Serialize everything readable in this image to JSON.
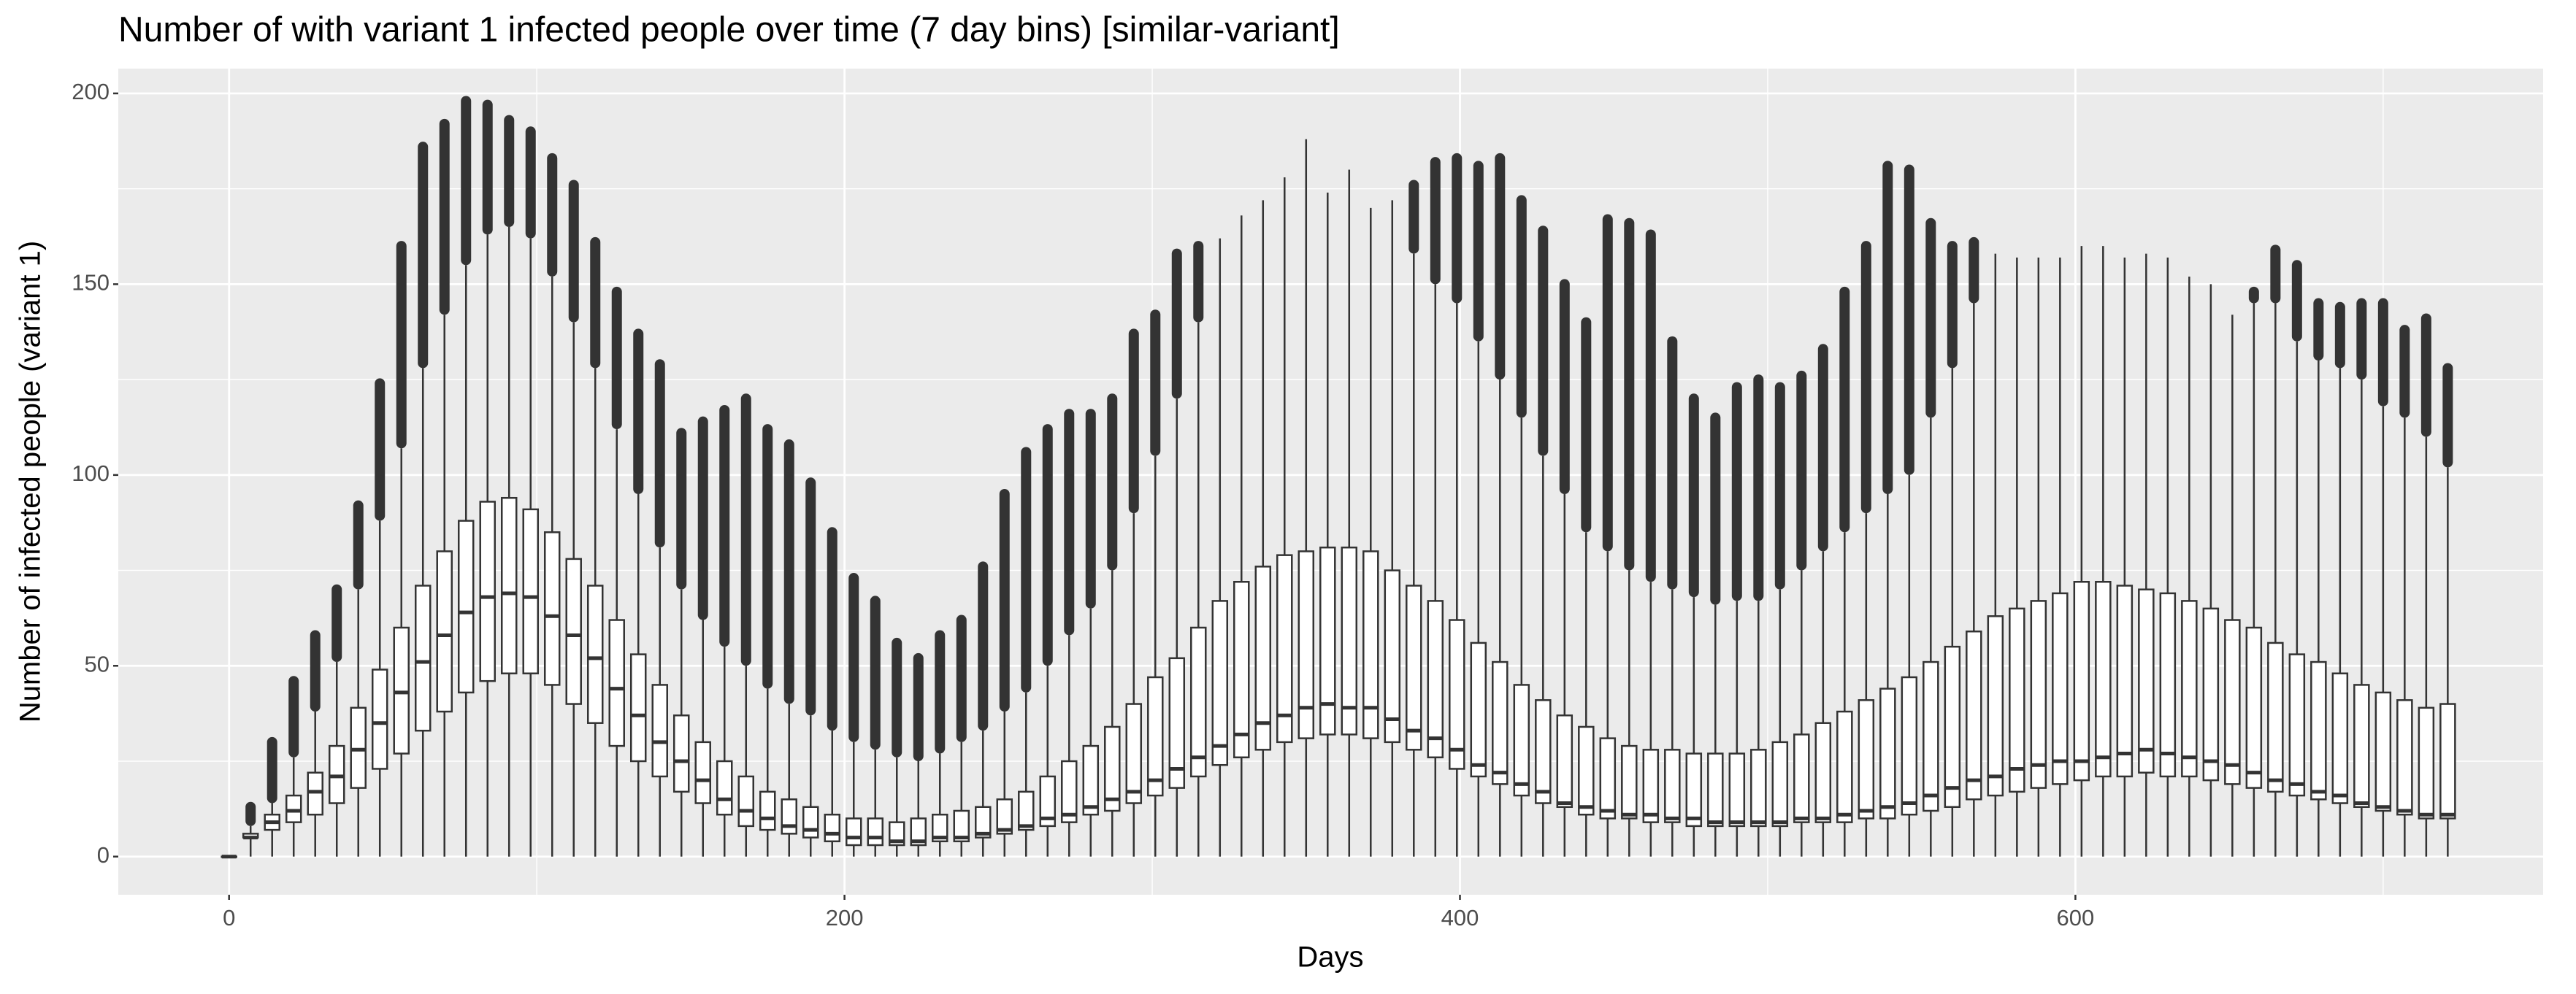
{
  "chart_data": {
    "type": "boxplot",
    "title": "Number of with variant 1 infected people over time (7 day bins) [similar-variant]",
    "x_label": "Days",
    "y_label": "Number of infected people (variant 1)",
    "xlim": [
      -36,
      752
    ],
    "ylim": [
      -10,
      206.5
    ],
    "xticks": [
      0,
      200,
      400,
      600
    ],
    "yticks": [
      0,
      50,
      100,
      150,
      200
    ],
    "x_minor_grid": [
      100,
      300,
      500,
      700
    ],
    "y_minor_grid": [
      25,
      75,
      125,
      175
    ],
    "grid": true,
    "color": "#333333",
    "x": [
      0,
      7,
      14,
      21,
      28,
      35,
      42,
      49,
      56,
      63,
      70,
      77,
      84,
      91,
      98,
      105,
      112,
      119,
      126,
      133,
      140,
      147,
      154,
      161,
      168,
      175,
      182,
      189,
      196,
      203,
      210,
      217,
      224,
      231,
      238,
      245,
      252,
      259,
      266,
      273,
      280,
      287,
      294,
      301,
      308,
      315,
      322,
      329,
      336,
      343,
      350,
      357,
      364,
      371,
      378,
      385,
      392,
      399,
      406,
      413,
      420,
      427,
      434,
      441,
      448,
      455,
      462,
      469,
      476,
      483,
      490,
      497,
      504,
      511,
      518,
      525,
      532,
      539,
      546,
      553,
      560,
      567,
      574,
      581,
      588,
      595,
      602,
      609,
      616,
      623,
      630,
      637,
      644,
      651,
      658,
      665,
      672,
      679,
      686,
      693,
      700,
      707,
      714,
      721
    ],
    "whisker_low": [
      0,
      0,
      0,
      0,
      0,
      0,
      0,
      0,
      0,
      0,
      0,
      0,
      0,
      0,
      0,
      0,
      0,
      0,
      0,
      0,
      0,
      0,
      0,
      0,
      0,
      0,
      0,
      0,
      0,
      0,
      0,
      0,
      0,
      0,
      0,
      0,
      0,
      0,
      0,
      0,
      0,
      0,
      0,
      0,
      0,
      0,
      0,
      0,
      0,
      0,
      0,
      0,
      0,
      0,
      0,
      0,
      0,
      0,
      0,
      0,
      0,
      0,
      0,
      0,
      0,
      0,
      0,
      0,
      0,
      0,
      0,
      0,
      0,
      0,
      0,
      0,
      0,
      0,
      0,
      0,
      0,
      0,
      0,
      0,
      0,
      0,
      0,
      0,
      0,
      0,
      0,
      0,
      0,
      0,
      0,
      0,
      0,
      0,
      0,
      0,
      0,
      0,
      0,
      0
    ],
    "q1": [
      0,
      5,
      7,
      9,
      11,
      14,
      18,
      23,
      27,
      33,
      38,
      43,
      46,
      48,
      48,
      45,
      40,
      35,
      29,
      25,
      21,
      17,
      14,
      11,
      8,
      7,
      6,
      5,
      4,
      3,
      3,
      3,
      3,
      4,
      4,
      5,
      6,
      7,
      8,
      9,
      11,
      12,
      14,
      16,
      18,
      21,
      24,
      26,
      28,
      30,
      31,
      32,
      32,
      31,
      30,
      28,
      26,
      23,
      21,
      19,
      16,
      14,
      13,
      11,
      10,
      10,
      9,
      9,
      8,
      8,
      8,
      8,
      8,
      9,
      9,
      9,
      10,
      10,
      11,
      12,
      13,
      15,
      16,
      17,
      18,
      19,
      20,
      21,
      21,
      22,
      21,
      21,
      20,
      19,
      18,
      17,
      16,
      15,
      14,
      13,
      12,
      11,
      10,
      10
    ],
    "median": [
      0,
      5,
      9,
      12,
      17,
      21,
      28,
      35,
      43,
      51,
      58,
      64,
      68,
      69,
      68,
      63,
      58,
      52,
      44,
      37,
      30,
      25,
      20,
      15,
      12,
      10,
      8,
      7,
      6,
      5,
      5,
      4,
      4,
      5,
      5,
      6,
      7,
      8,
      10,
      11,
      13,
      15,
      17,
      20,
      23,
      26,
      29,
      32,
      35,
      37,
      39,
      40,
      39,
      39,
      36,
      33,
      31,
      28,
      24,
      22,
      19,
      17,
      14,
      13,
      12,
      11,
      11,
      10,
      10,
      9,
      9,
      9,
      9,
      10,
      10,
      11,
      12,
      13,
      14,
      16,
      18,
      20,
      21,
      23,
      24,
      25,
      25,
      26,
      27,
      28,
      27,
      26,
      25,
      24,
      22,
      20,
      19,
      17,
      16,
      14,
      13,
      12,
      11,
      11
    ],
    "q3": [
      0,
      6,
      11,
      16,
      22,
      29,
      39,
      49,
      60,
      71,
      80,
      88,
      93,
      94,
      91,
      85,
      78,
      71,
      62,
      53,
      45,
      37,
      30,
      25,
      21,
      17,
      15,
      13,
      11,
      10,
      10,
      9,
      10,
      11,
      12,
      13,
      15,
      17,
      21,
      25,
      29,
      34,
      40,
      47,
      52,
      60,
      67,
      72,
      76,
      79,
      80,
      81,
      81,
      80,
      75,
      71,
      67,
      62,
      56,
      51,
      45,
      41,
      37,
      34,
      31,
      29,
      28,
      28,
      27,
      27,
      27,
      28,
      30,
      32,
      35,
      38,
      41,
      44,
      47,
      51,
      55,
      59,
      63,
      65,
      67,
      69,
      72,
      72,
      71,
      70,
      69,
      67,
      65,
      62,
      60,
      56,
      53,
      51,
      48,
      45,
      43,
      41,
      39,
      40
    ],
    "whisker_high": [
      0,
      8,
      14,
      26,
      38,
      51,
      70,
      88,
      107,
      128,
      142,
      155,
      163,
      165,
      162,
      152,
      140,
      128,
      112,
      95,
      81,
      70,
      62,
      55,
      50,
      44,
      40,
      37,
      33,
      30,
      28,
      26,
      25,
      27,
      30,
      33,
      38,
      43,
      50,
      58,
      65,
      75,
      90,
      105,
      120,
      140,
      162,
      168,
      172,
      178,
      188,
      174,
      180,
      170,
      172,
      158,
      150,
      145,
      135,
      125,
      115,
      105,
      95,
      85,
      80,
      75,
      72,
      70,
      68,
      66,
      67,
      67,
      70,
      75,
      80,
      85,
      90,
      95,
      100,
      115,
      128,
      145,
      158,
      157,
      157,
      157,
      160,
      160,
      157,
      158,
      157,
      152,
      150,
      142,
      145,
      145,
      135,
      130,
      128,
      125,
      118,
      115,
      110,
      102
    ],
    "outlier_max": [
      null,
      13,
      30,
      46,
      58,
      70,
      92,
      124,
      160,
      186,
      192,
      198,
      197,
      193,
      190,
      183,
      176,
      161,
      148,
      137,
      129,
      111,
      114,
      117,
      120,
      112,
      108,
      98,
      85,
      73,
      67,
      56,
      52,
      58,
      62,
      76,
      95,
      106,
      112,
      116,
      116,
      120,
      137,
      142,
      158,
      160,
      null,
      null,
      null,
      null,
      null,
      null,
      null,
      null,
      null,
      176,
      182,
      183,
      181,
      183,
      172,
      164,
      150,
      140,
      167,
      166,
      163,
      135,
      120,
      115,
      123,
      125,
      123,
      126,
      133,
      148,
      160,
      181,
      180,
      166,
      160,
      161,
      null,
      null,
      null,
      null,
      null,
      null,
      null,
      null,
      null,
      null,
      null,
      null,
      148,
      159,
      155,
      145,
      144,
      145,
      145,
      138,
      141,
      128
    ]
  }
}
